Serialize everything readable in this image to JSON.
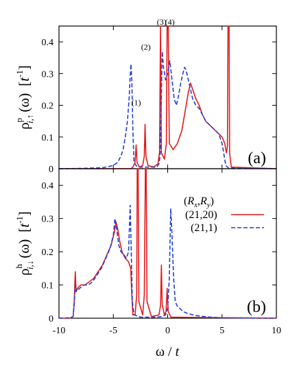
{
  "chart_data": [
    {
      "type": "line",
      "panel": "(a)",
      "ylabel": {
        "rho": "ρ",
        "sup": "p",
        "sub": "i,↑",
        "arg": "(ω)",
        "unit_open": "[",
        "unit_t": "t",
        "unit_pow": "-1",
        "unit_close": "]"
      },
      "xlim": [
        -10,
        10
      ],
      "ylim": [
        0,
        0.45
      ],
      "yticks": [
        "0",
        "0.1",
        "0.2",
        "0.3",
        "0.4"
      ],
      "annotations": [
        {
          "text": "(1)",
          "x": -2.9,
          "y": 0.2
        },
        {
          "text": "(2)",
          "x": -2.0,
          "y": 0.375
        },
        {
          "text": "(3)",
          "x": -0.55,
          "y": 0.48
        },
        {
          "text": "(4)",
          "x": 0.2,
          "y": 0.48
        }
      ],
      "series": [
        {
          "color": "#e31a1c",
          "dash": "solid",
          "points": [
            [
              -10,
              0
            ],
            [
              -3.4,
              0
            ],
            [
              -3.2,
              0.005
            ],
            [
              -3.0,
              0.02
            ],
            [
              -2.9,
              0.075
            ],
            [
              -2.82,
              0.02
            ],
            [
              -2.6,
              0.005
            ],
            [
              -2.3,
              0.01
            ],
            [
              -2.15,
              0.04
            ],
            [
              -2.08,
              0.14
            ],
            [
              -2.0,
              0.04
            ],
            [
              -1.8,
              0.01
            ],
            [
              -1.3,
              0.005
            ],
            [
              -0.9,
              0.015
            ],
            [
              -0.75,
              0.05
            ],
            [
              -0.66,
              0.45
            ],
            [
              -0.58,
              0.05
            ],
            [
              -0.3,
              0.03
            ],
            [
              -0.12,
              0.08
            ],
            [
              -0.05,
              0.45
            ],
            [
              0.05,
              0.45
            ],
            [
              0.15,
              0.08
            ],
            [
              0.5,
              0.06
            ],
            [
              0.9,
              0.08
            ],
            [
              1.3,
              0.12
            ],
            [
              1.6,
              0.18
            ],
            [
              1.9,
              0.24
            ],
            [
              2.1,
              0.27
            ],
            [
              2.3,
              0.25
            ],
            [
              2.6,
              0.22
            ],
            [
              2.9,
              0.2
            ],
            [
              3.2,
              0.17
            ],
            [
              3.5,
              0.15
            ],
            [
              3.8,
              0.14
            ],
            [
              4.1,
              0.13
            ],
            [
              4.4,
              0.12
            ],
            [
              4.7,
              0.11
            ],
            [
              5.0,
              0.1
            ],
            [
              5.25,
              0.08
            ],
            [
              5.4,
              0.05
            ],
            [
              5.5,
              0.07
            ],
            [
              5.55,
              0.45
            ],
            [
              5.65,
              0.45
            ],
            [
              5.7,
              0.05
            ],
            [
              5.85,
              0.005
            ],
            [
              10,
              0
            ]
          ]
        },
        {
          "color": "#1f3fd6",
          "dash": "dashed",
          "points": [
            [
              -10,
              0
            ],
            [
              -8,
              0.001
            ],
            [
              -6,
              0.003
            ],
            [
              -5,
              0.01
            ],
            [
              -4.6,
              0.02
            ],
            [
              -4.3,
              0.04
            ],
            [
              -4.1,
              0.06
            ],
            [
              -3.9,
              0.1
            ],
            [
              -3.7,
              0.15
            ],
            [
              -3.55,
              0.22
            ],
            [
              -3.45,
              0.29
            ],
            [
              -3.38,
              0.33
            ],
            [
              -3.3,
              0.28
            ],
            [
              -3.2,
              0.12
            ],
            [
              -3.1,
              0.02
            ],
            [
              -2.8,
              0.005
            ],
            [
              -1.0,
              0.005
            ],
            [
              -0.8,
              0.015
            ],
            [
              -0.7,
              0.04
            ],
            [
              -0.6,
              0.2
            ],
            [
              -0.5,
              0.37
            ],
            [
              -0.38,
              0.32
            ],
            [
              -0.2,
              0.28
            ],
            [
              0,
              0.3
            ],
            [
              0.2,
              0.34
            ],
            [
              0.4,
              0.28
            ],
            [
              0.6,
              0.22
            ],
            [
              0.8,
              0.2
            ],
            [
              1.0,
              0.23
            ],
            [
              1.2,
              0.27
            ],
            [
              1.4,
              0.3
            ],
            [
              1.55,
              0.32
            ],
            [
              1.7,
              0.31
            ],
            [
              1.9,
              0.28
            ],
            [
              2.1,
              0.25
            ],
            [
              2.3,
              0.22
            ],
            [
              2.6,
              0.2
            ],
            [
              2.9,
              0.19
            ],
            [
              3.2,
              0.17
            ],
            [
              3.5,
              0.15
            ],
            [
              3.8,
              0.14
            ],
            [
              4.1,
              0.13
            ],
            [
              4.4,
              0.12
            ],
            [
              4.7,
              0.11
            ],
            [
              5.0,
              0.08
            ],
            [
              5.2,
              0.04
            ],
            [
              5.35,
              0.01
            ],
            [
              5.6,
              0.002
            ],
            [
              10,
              0
            ]
          ]
        }
      ]
    },
    {
      "type": "line",
      "panel": "(b)",
      "ylabel": {
        "rho": "ρ",
        "sup": "h",
        "sub": "i,↓",
        "arg": "(ω)",
        "unit_open": "[",
        "unit_t": "t",
        "unit_pow": "-1",
        "unit_close": "]"
      },
      "xlabel": {
        "omega": "ω",
        "slash": " / ",
        "t": "t"
      },
      "xlim": [
        -10,
        10
      ],
      "ylim": [
        0,
        0.45
      ],
      "xticks": [
        "-10",
        "-5",
        "0",
        "5",
        "10"
      ],
      "yticks": [
        "0",
        "0.1",
        "0.2",
        "0.3",
        "0.4"
      ],
      "legend": {
        "placement": "top-right",
        "header_open": "(",
        "header_R": "R",
        "header_x": "x",
        "header_comma": ",",
        "header_y": "y",
        "header_close": ")",
        "entries": [
          "(21,20)",
          "(21,1)"
        ]
      },
      "series": [
        {
          "name": "(21,20)",
          "color": "#e31a1c",
          "dash": "solid",
          "points": [
            [
              -10,
              0
            ],
            [
              -9,
              0
            ],
            [
              -8.7,
              0.005
            ],
            [
              -8.6,
              0.05
            ],
            [
              -8.5,
              0.14
            ],
            [
              -8.42,
              0.08
            ],
            [
              -8.3,
              0.09
            ],
            [
              -8.0,
              0.1
            ],
            [
              -7.6,
              0.1
            ],
            [
              -7.2,
              0.11
            ],
            [
              -6.8,
              0.12
            ],
            [
              -6.4,
              0.14
            ],
            [
              -6.0,
              0.16
            ],
            [
              -5.6,
              0.19
            ],
            [
              -5.2,
              0.22
            ],
            [
              -4.9,
              0.26
            ],
            [
              -4.75,
              0.29
            ],
            [
              -4.6,
              0.27
            ],
            [
              -4.4,
              0.23
            ],
            [
              -4.2,
              0.2
            ],
            [
              -3.9,
              0.18
            ],
            [
              -3.6,
              0.17
            ],
            [
              -3.4,
              0.15
            ],
            [
              -3.3,
              0.07
            ],
            [
              -3.2,
              0.01
            ],
            [
              -3.0,
              0.01
            ],
            [
              -2.85,
              0.07
            ],
            [
              -2.8,
              0.45
            ],
            [
              -2.72,
              0.45
            ],
            [
              -2.65,
              0.05
            ],
            [
              -2.3,
              0.01
            ],
            [
              -2.15,
              0.07
            ],
            [
              -2.05,
              0.45
            ],
            [
              -1.98,
              0.45
            ],
            [
              -1.9,
              0.05
            ],
            [
              -1.5,
              0.005
            ],
            [
              -0.8,
              0.01
            ],
            [
              -0.65,
              0.04
            ],
            [
              -0.58,
              0.16
            ],
            [
              -0.5,
              0.04
            ],
            [
              -0.3,
              0.01
            ],
            [
              -0.15,
              0.02
            ],
            [
              -0.05,
              0.09
            ],
            [
              0.05,
              0.02
            ],
            [
              0.3,
              0.003
            ],
            [
              10,
              0
            ]
          ]
        },
        {
          "name": "(21,1)",
          "color": "#1f3fd6",
          "dash": "dashed",
          "points": [
            [
              -10,
              0
            ],
            [
              -9.0,
              0.001
            ],
            [
              -8.7,
              0.005
            ],
            [
              -8.6,
              0.04
            ],
            [
              -8.5,
              0.1
            ],
            [
              -8.4,
              0.08
            ],
            [
              -8.1,
              0.09
            ],
            [
              -7.7,
              0.1
            ],
            [
              -7.3,
              0.1
            ],
            [
              -6.9,
              0.11
            ],
            [
              -6.5,
              0.13
            ],
            [
              -6.1,
              0.15
            ],
            [
              -5.7,
              0.18
            ],
            [
              -5.3,
              0.21
            ],
            [
              -5.0,
              0.25
            ],
            [
              -4.85,
              0.3
            ],
            [
              -4.7,
              0.27
            ],
            [
              -4.5,
              0.22
            ],
            [
              -4.3,
              0.2
            ],
            [
              -4.0,
              0.19
            ],
            [
              -3.8,
              0.18
            ],
            [
              -3.6,
              0.2
            ],
            [
              -3.45,
              0.34
            ],
            [
              -3.35,
              0.2
            ],
            [
              -3.25,
              0.05
            ],
            [
              -3.1,
              0.01
            ],
            [
              -2.5,
              0.003
            ],
            [
              -1.0,
              0.003
            ],
            [
              -0.5,
              0.005
            ],
            [
              -0.2,
              0.01
            ],
            [
              0,
              0.03
            ],
            [
              0.15,
              0.12
            ],
            [
              0.28,
              0.33
            ],
            [
              0.4,
              0.25
            ],
            [
              0.55,
              0.12
            ],
            [
              0.7,
              0.05
            ],
            [
              0.9,
              0.035
            ],
            [
              1.1,
              0.03
            ],
            [
              1.4,
              0.02
            ],
            [
              1.8,
              0.015
            ],
            [
              2.3,
              0.01
            ],
            [
              3.0,
              0.006
            ],
            [
              4.0,
              0.003
            ],
            [
              5.0,
              0.001
            ],
            [
              10,
              0
            ]
          ]
        }
      ]
    }
  ]
}
